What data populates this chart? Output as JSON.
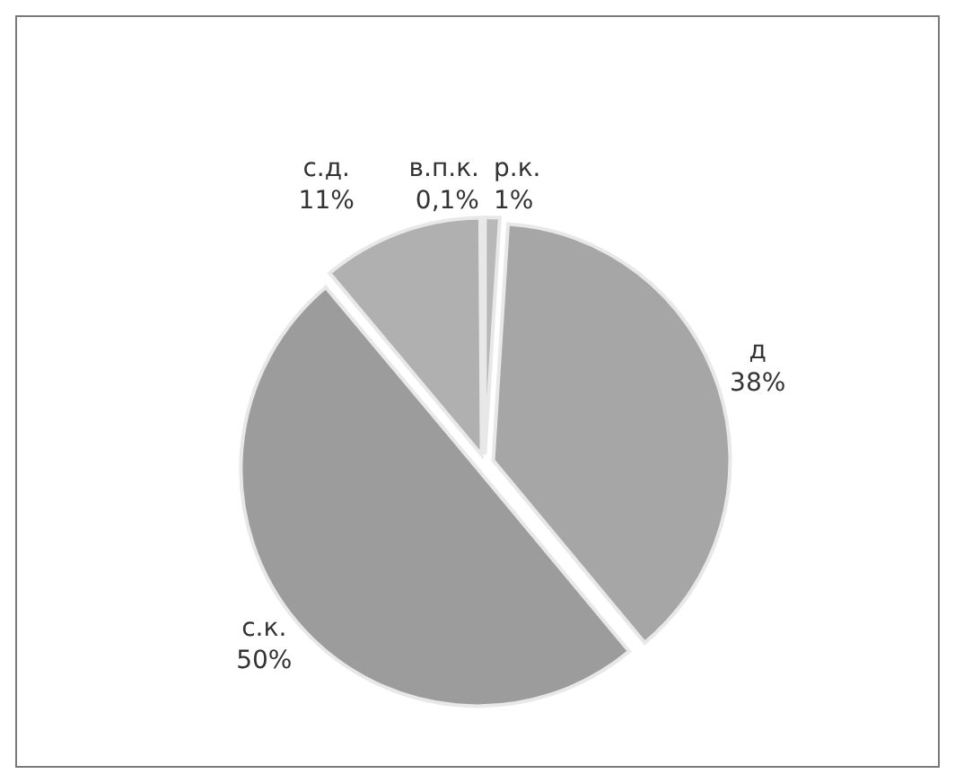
{
  "chart_data": {
    "type": "pie",
    "categories": [
      "р.к.",
      "д",
      "с.к.",
      "с.д.",
      "в.п.к."
    ],
    "values": [
      1,
      38,
      50,
      11,
      0.1
    ],
    "value_labels": [
      "1%",
      "38%",
      "50%",
      "11%",
      "0,1%"
    ],
    "colors": [
      "#b8b8b8",
      "#a6a6a6",
      "#9c9c9c",
      "#b0b0b0",
      "#c4c4c4"
    ]
  }
}
